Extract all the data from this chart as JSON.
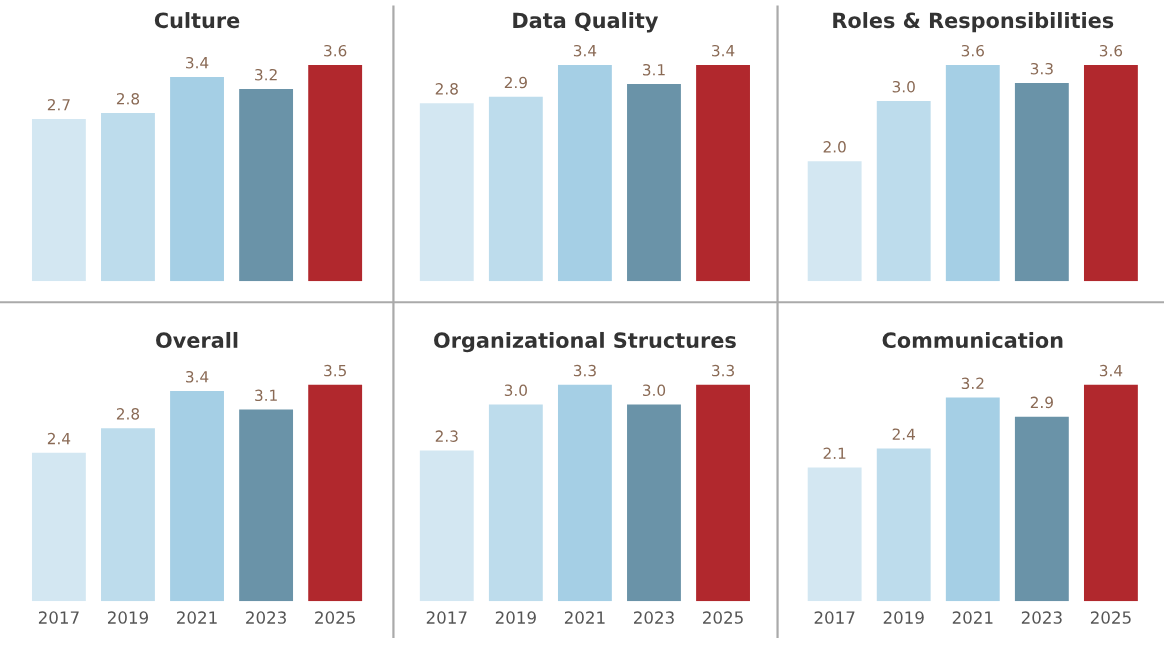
{
  "chart_data": [
    {
      "type": "bar",
      "title": "Culture",
      "categories": [
        "2017",
        "2019",
        "2021",
        "2023",
        "2025"
      ],
      "values": [
        2.7,
        2.8,
        3.4,
        3.2,
        3.6
      ],
      "value_labels": [
        "2.7",
        "2.8",
        "3.4",
        "3.2",
        "3.6"
      ],
      "colors": [
        "#d3e7f2",
        "#bddcec",
        "#a5cfe5",
        "#6a93a8",
        "#b1282d"
      ],
      "tick_labels": false
    },
    {
      "type": "bar",
      "title": "Data Quality",
      "categories": [
        "2017",
        "2019",
        "2021",
        "2023",
        "2025"
      ],
      "values": [
        2.8,
        2.9,
        3.4,
        3.1,
        3.4
      ],
      "value_labels": [
        "2.8",
        "2.9",
        "3.4",
        "3.1",
        "3.4"
      ],
      "colors": [
        "#d3e7f2",
        "#bddcec",
        "#a5cfe5",
        "#6a93a8",
        "#b1282d"
      ],
      "tick_labels": false
    },
    {
      "type": "bar",
      "title": "Roles & Responsibilities",
      "categories": [
        "2017",
        "2019",
        "2021",
        "2023",
        "2025"
      ],
      "values": [
        2.0,
        3.0,
        3.6,
        3.3,
        3.6
      ],
      "value_labels": [
        "2.0",
        "3.0",
        "3.6",
        "3.3",
        "3.6"
      ],
      "colors": [
        "#d3e7f2",
        "#bddcec",
        "#a5cfe5",
        "#6a93a8",
        "#b1282d"
      ],
      "tick_labels": false
    },
    {
      "type": "bar",
      "title": "Overall",
      "categories": [
        "2017",
        "2019",
        "2021",
        "2023",
        "2025"
      ],
      "values": [
        2.4,
        2.8,
        3.4,
        3.1,
        3.5
      ],
      "value_labels": [
        "2.4",
        "2.8",
        "3.4",
        "3.1",
        "3.5"
      ],
      "colors": [
        "#d3e7f2",
        "#bddcec",
        "#a5cfe5",
        "#6a93a8",
        "#b1282d"
      ],
      "tick_labels": "x"
    },
    {
      "type": "bar",
      "title": "Organizational Structures",
      "categories": [
        "2017",
        "2019",
        "2021",
        "2023",
        "2025"
      ],
      "values": [
        2.3,
        3.0,
        3.3,
        3.0,
        3.3
      ],
      "value_labels": [
        "2.3",
        "3.0",
        "3.3",
        "3.0",
        "3.3"
      ],
      "colors": [
        "#d3e7f2",
        "#bddcec",
        "#a5cfe5",
        "#6a93a8",
        "#b1282d"
      ],
      "tick_labels": "x"
    },
    {
      "type": "bar",
      "title": "Communication",
      "categories": [
        "2017",
        "2019",
        "2021",
        "2023",
        "2025"
      ],
      "values": [
        2.1,
        2.4,
        3.2,
        2.9,
        3.4
      ],
      "value_labels": [
        "2.1",
        "2.4",
        "3.2",
        "2.9",
        "3.4"
      ],
      "colors": [
        "#d3e7f2",
        "#bddcec",
        "#a5cfe5",
        "#6a93a8",
        "#b1282d"
      ],
      "tick_labels": "x"
    }
  ]
}
